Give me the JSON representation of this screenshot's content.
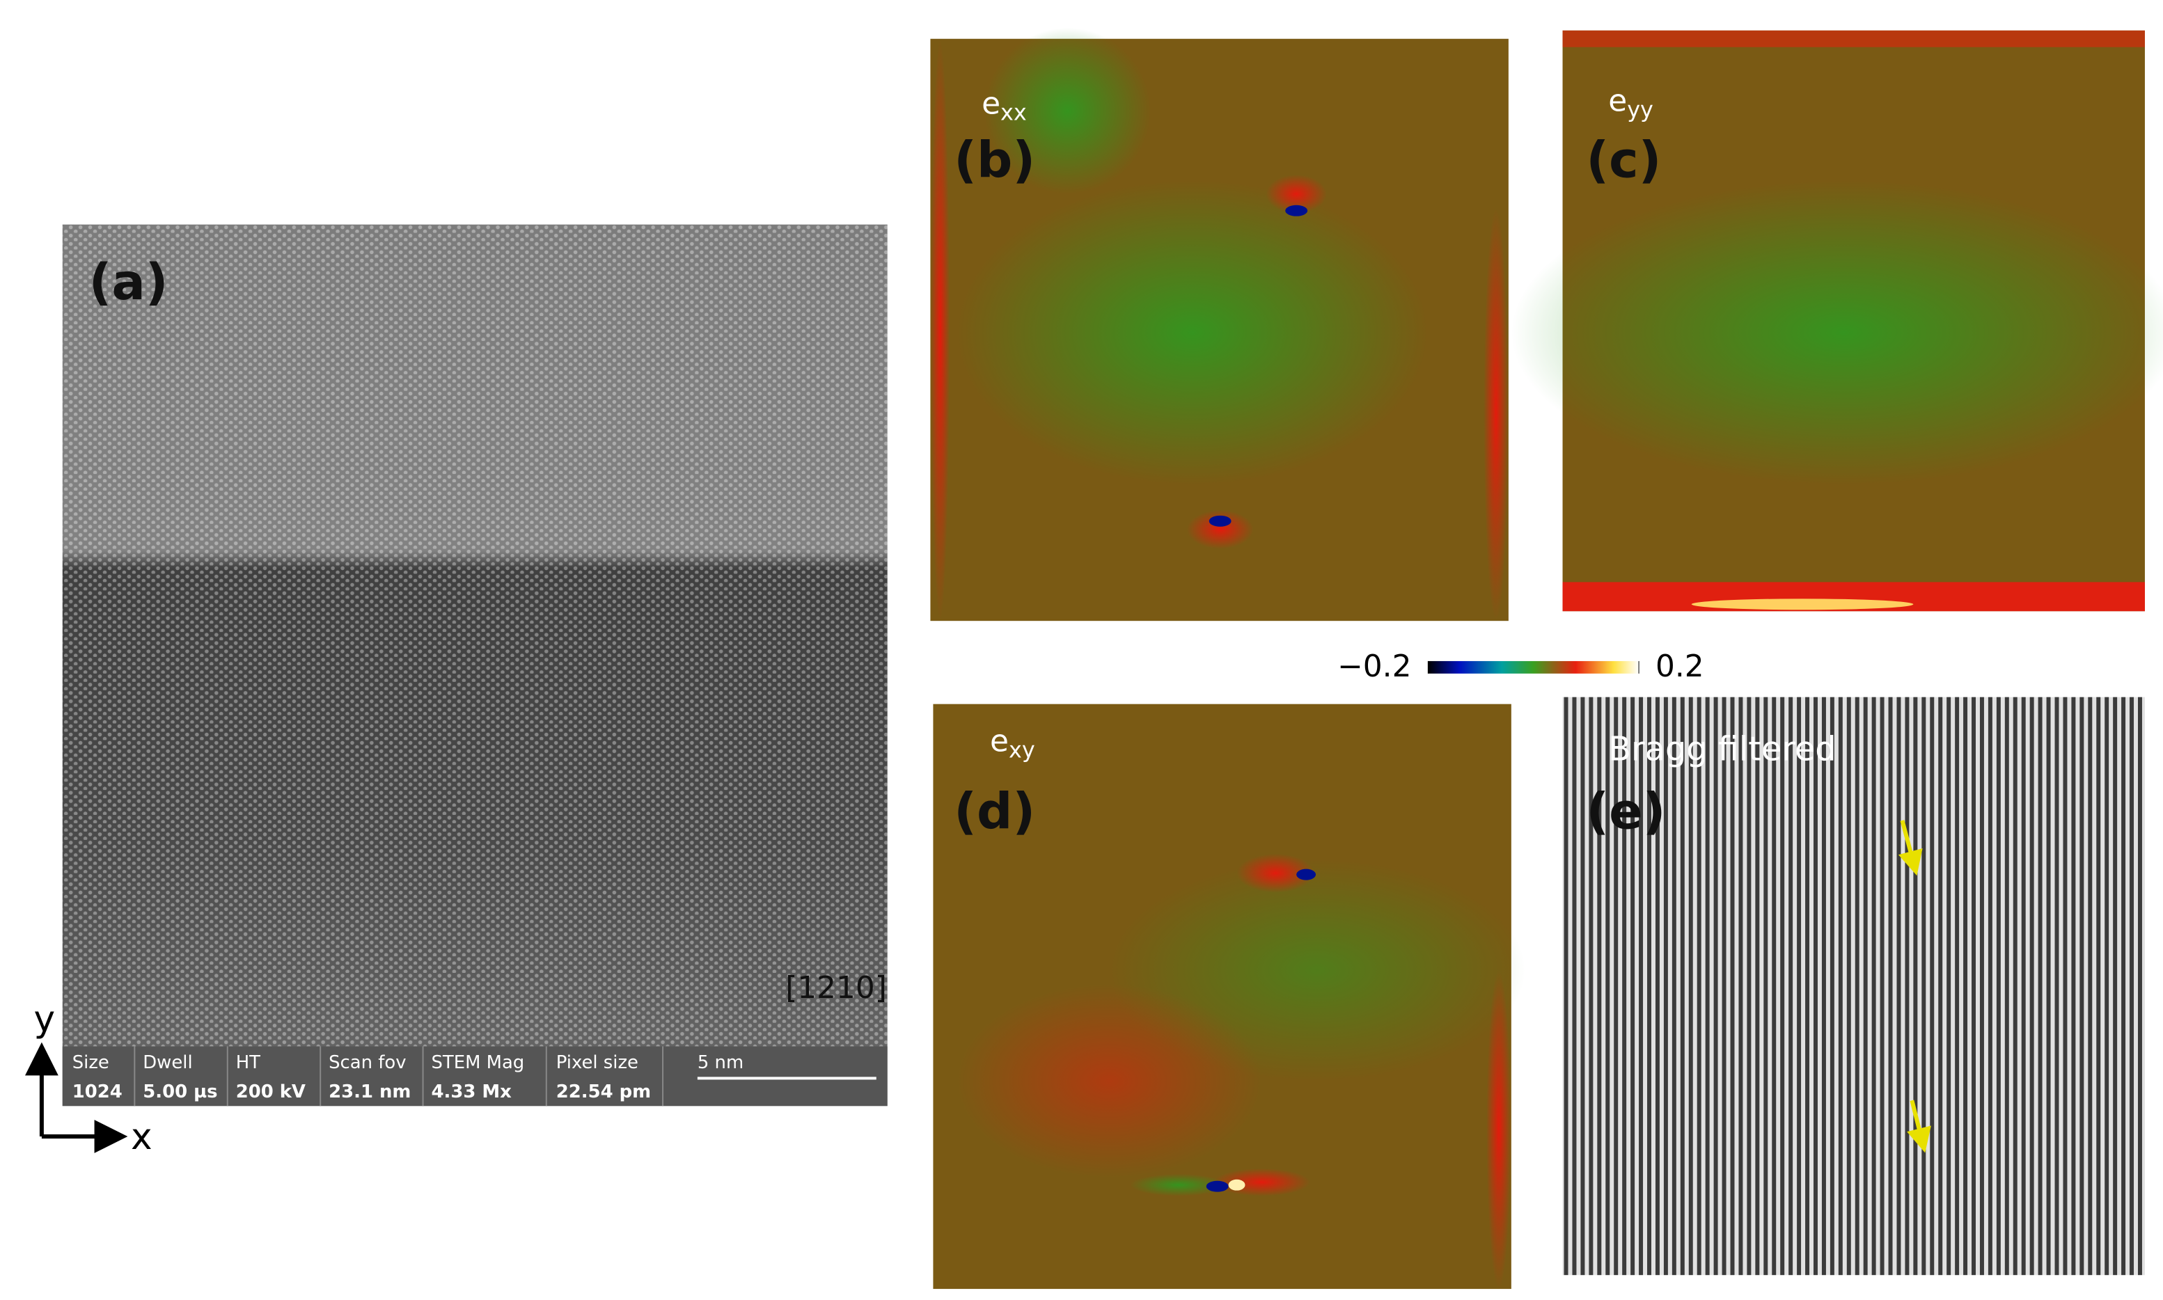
{
  "panels": {
    "a": {
      "label": "(a)",
      "zone_axis": "[1210]",
      "info_bar": [
        {
          "name": "Size",
          "value": "1024"
        },
        {
          "name": "Dwell",
          "value": "5.00 µs"
        },
        {
          "name": "HT",
          "value": "200 kV"
        },
        {
          "name": "Scan fov",
          "value": "23.1 nm"
        },
        {
          "name": "STEM Mag",
          "value": "4.33 Mx"
        },
        {
          "name": "Pixel size",
          "value": "22.54 pm"
        }
      ],
      "scale_bar": "5 nm",
      "axes": {
        "y": "y",
        "x": "x"
      }
    },
    "b": {
      "label": "(b)",
      "quantity": {
        "base": "e",
        "sub": "xx"
      }
    },
    "c": {
      "label": "(c)",
      "quantity": {
        "base": "e",
        "sub": "yy"
      }
    },
    "d": {
      "label": "(d)",
      "quantity": {
        "base": "e",
        "sub": "xy"
      }
    },
    "e": {
      "label": "(e)",
      "caption": "Bragg filtered"
    }
  },
  "colorbar": {
    "ticks": [
      {
        "value": -0.2,
        "label": "−0.2"
      },
      0.2
    ]
  }
}
